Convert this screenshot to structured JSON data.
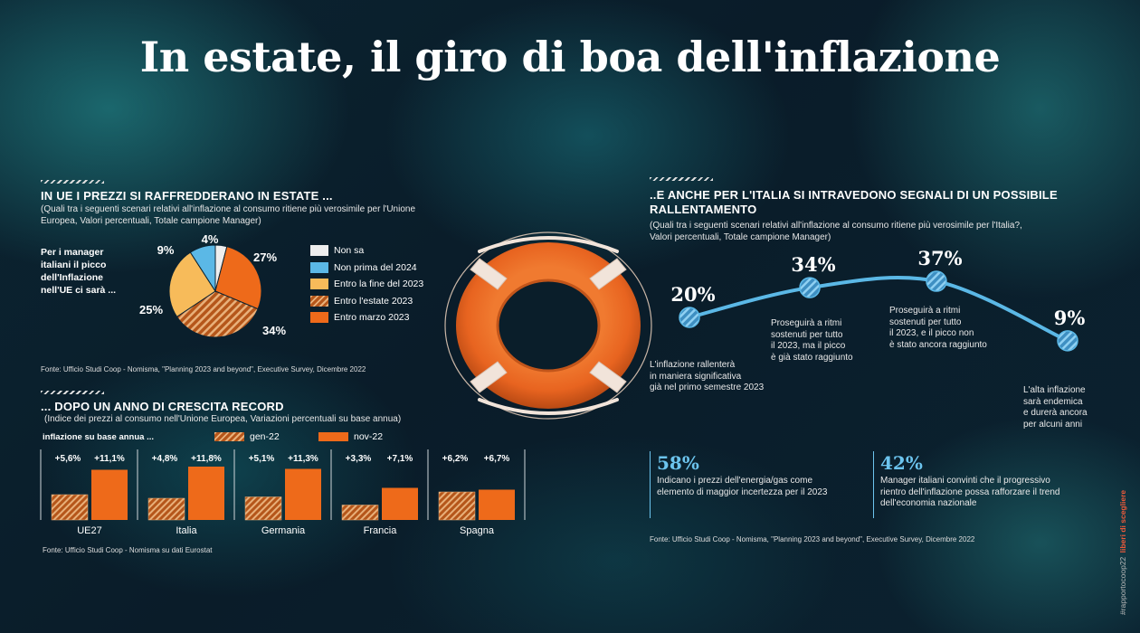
{
  "title": "In estate, il giro di boa dell'inflazione",
  "colors": {
    "light_blue": "#5bb8e6",
    "orange": "#ee6a1a",
    "yellow": "#f7bb5a",
    "white": "#eeeeee",
    "hatched": "#c4601c"
  },
  "eu_section": {
    "heading": "IN UE I PREZZI SI RAFFREDDERANO IN ESTATE ...",
    "subtitle_1": "(Quali tra i seguenti scenari relativi all'inflazione al consumo ritiene più verosimile  per l'Unione",
    "subtitle_2": "Europea, Valori percentuali, Totale campione Manager)",
    "side_text_1": "Per i manager",
    "side_text_2": "italiani il picco",
    "side_text_3": "dell'Inflazione",
    "side_text_4": "nell'UE ci sarà ...",
    "source": "Fonte: Ufficio Studi Coop - Nomisma,  \"Planning 2023 and beyond\", Executive Survey, Dicembre 2022"
  },
  "bars_section": {
    "heading": "... DOPO UN ANNO DI CRESCITA RECORD",
    "subtitle": "(Indice dei prezzi al consumo nell'Unione Europea, Variazioni percentuali su base annua)",
    "legend_prefix": "inflazione su base annua ...",
    "source": "Fonte: Ufficio Studi Coop - Nomisma su dati Eurostat"
  },
  "italy_section": {
    "heading_1": "..E ANCHE PER L'ITALIA SI INTRAVEDONO SEGNALI DI UN POSSIBILE",
    "heading_2": "RALLENTAMENTO",
    "subtitle_1": "(Quali tra i seguenti scenari relativi all'inflazione al consumo ritiene più verosimile per l'Italia?,",
    "subtitle_2": "Valori percentuali, Totale campione Manager)",
    "notes": [
      [
        "L'inflazione rallenterà",
        "in maniera significativa",
        "già nel primo semestre 2023"
      ],
      [
        "Proseguirà a ritmi",
        "sostenuti per tutto",
        "il 2023, ma il picco",
        "è già stato raggiunto"
      ],
      [
        "Proseguirà a ritmi",
        "sostenuti per tutto",
        "il 2023, e il picco non",
        "è stato ancora raggiunto"
      ],
      [
        "L'alta inflazione",
        "sarà endemica",
        "e durerà ancora",
        "per alcuni anni"
      ]
    ],
    "stat_1_value": "58%",
    "stat_1_text_1": "Indicano i prezzi dell'energia/gas come",
    "stat_1_text_2": "elemento di maggior incertezza per il 2023",
    "stat_2_value": "42%",
    "stat_2_text_1": "Manager italiani convinti che il progressivo",
    "stat_2_text_2": "rientro dell'inflazione possa rafforzare  il trend",
    "stat_2_text_3": "dell'economia nazionale",
    "source": "Fonte: Ufficio Studi Coop - Nomisma,  \"Planning 2023 and beyond\", Executive Survey, Dicembre 2022"
  },
  "side_tag": "#rapportocoop22",
  "side_tag_2": "liberi di scegliere",
  "chart_data": [
    {
      "type": "pie",
      "slices": [
        {
          "name": "Non sa",
          "value": 4,
          "label": "4%",
          "color": "#eeeeee"
        },
        {
          "name": "Non prima del 2024",
          "value": 9,
          "label": "9%",
          "color": "#5bb8e6"
        },
        {
          "name": "Entro la fine del 2023",
          "value": 25,
          "label": "25%",
          "color": "#f7bb5a"
        },
        {
          "name": "Entro l'estate 2023",
          "value": 34,
          "label": "34%",
          "color": "#c4601c",
          "hatched": true
        },
        {
          "name": "Entro marzo 2023",
          "value": 27,
          "label": "27%",
          "color": "#ee6a1a"
        }
      ],
      "legend": [
        "Non sa",
        "Non prima del 2024",
        "Entro la fine del 2023",
        "Entro l'estate 2023",
        "Entro marzo 2023"
      ]
    },
    {
      "type": "bar",
      "categories": [
        "UE27",
        "Italia",
        "Germania",
        "Francia",
        "Spagna"
      ],
      "series": [
        {
          "name": "gen-22",
          "values": [
            5.6,
            4.8,
            5.1,
            3.3,
            6.2
          ],
          "labels": [
            "+5,6%",
            "+4,8%",
            "+5,1%",
            "+3,3%",
            "+6,2%"
          ]
        },
        {
          "name": "nov-22",
          "values": [
            11.1,
            11.8,
            11.3,
            7.1,
            6.7
          ],
          "labels": [
            "+11,1%",
            "+11,8%",
            "+11,3%",
            "+7,1%",
            "+6,7%"
          ]
        }
      ]
    },
    {
      "type": "line",
      "values": [
        20,
        34,
        37,
        9
      ],
      "labels": [
        "20%",
        "34%",
        "37%",
        "9%"
      ]
    }
  ]
}
